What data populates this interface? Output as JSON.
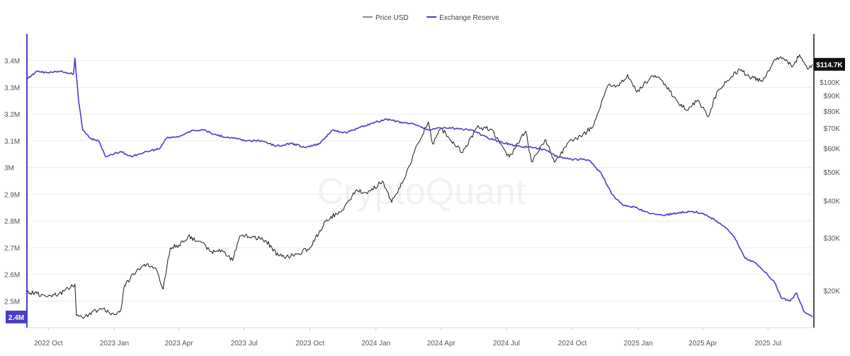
{
  "watermark": "CryptoQuant",
  "colors": {
    "price": "#1a1a1a",
    "reserve": "#4a3dc8",
    "grid": "#ececec",
    "badge_dark": "#111111"
  },
  "chart_data": {
    "type": "line",
    "title": "",
    "grid": true,
    "legend": {
      "position": "top-center",
      "entries": [
        "Price USD",
        "Exchange Reserve"
      ]
    },
    "x_ticks": [
      "2022 Oct",
      "2023 Jan",
      "2023 Apr",
      "2023 Jul",
      "2023 Oct",
      "2024 Jan",
      "2024 Apr",
      "2024 Jul",
      "2024 Oct",
      "2025 Jan",
      "2025 Apr",
      "2025 Jul"
    ],
    "x_range": [
      "2022-09-01",
      "2025-09-01"
    ],
    "y_left": {
      "label": "",
      "range": [
        2400000,
        3500000
      ],
      "ticks": [
        {
          "v": 3400000,
          "t": "3.4M"
        },
        {
          "v": 3300000,
          "t": "3.3M"
        },
        {
          "v": 3200000,
          "t": "3.2M"
        },
        {
          "v": 3100000,
          "t": "3.1M"
        },
        {
          "v": 3000000,
          "t": "3M"
        },
        {
          "v": 2900000,
          "t": "2.9M"
        },
        {
          "v": 2800000,
          "t": "2.8M"
        },
        {
          "v": 2700000,
          "t": "2.7M"
        },
        {
          "v": 2600000,
          "t": "2.6M"
        },
        {
          "v": 2500000,
          "t": "2.5M"
        }
      ]
    },
    "y_right": {
      "label": "",
      "scale": "log",
      "range": [
        15000,
        145000
      ],
      "ticks": [
        {
          "v": 100000,
          "t": "$100K"
        },
        {
          "v": 90000,
          "t": "$90K"
        },
        {
          "v": 80000,
          "t": "$80K"
        },
        {
          "v": 70000,
          "t": "$70K"
        },
        {
          "v": 60000,
          "t": "$60K"
        },
        {
          "v": 50000,
          "t": "$50K"
        },
        {
          "v": 40000,
          "t": "$40K"
        },
        {
          "v": 30000,
          "t": "$30K"
        },
        {
          "v": 20000,
          "t": "$20K"
        }
      ]
    },
    "current_labels": {
      "reserve": "2.4M",
      "price": "$114.7K"
    },
    "series": [
      {
        "name": "Price USD",
        "axis": "right",
        "points": [
          [
            "2022-09-01",
            19800
          ],
          [
            "2022-09-15",
            19500
          ],
          [
            "2022-10-01",
            19200
          ],
          [
            "2022-10-15",
            19400
          ],
          [
            "2022-11-01",
            20500
          ],
          [
            "2022-11-07",
            21000
          ],
          [
            "2022-11-09",
            16500
          ],
          [
            "2022-11-20",
            16200
          ],
          [
            "2022-12-01",
            17000
          ],
          [
            "2022-12-15",
            17300
          ],
          [
            "2023-01-01",
            16600
          ],
          [
            "2023-01-10",
            17200
          ],
          [
            "2023-01-15",
            20800
          ],
          [
            "2023-02-01",
            23300
          ],
          [
            "2023-02-15",
            24500
          ],
          [
            "2023-03-01",
            23400
          ],
          [
            "2023-03-10",
            20200
          ],
          [
            "2023-03-20",
            27800
          ],
          [
            "2023-04-01",
            28400
          ],
          [
            "2023-04-14",
            30400
          ],
          [
            "2023-04-30",
            29200
          ],
          [
            "2023-05-15",
            27000
          ],
          [
            "2023-06-01",
            27100
          ],
          [
            "2023-06-15",
            25200
          ],
          [
            "2023-06-25",
            30500
          ],
          [
            "2023-07-15",
            30200
          ],
          [
            "2023-08-01",
            29300
          ],
          [
            "2023-08-18",
            26100
          ],
          [
            "2023-09-01",
            25900
          ],
          [
            "2023-09-15",
            26600
          ],
          [
            "2023-10-01",
            27800
          ],
          [
            "2023-10-24",
            34500
          ],
          [
            "2023-11-15",
            37200
          ],
          [
            "2023-12-05",
            43500
          ],
          [
            "2023-12-20",
            42200
          ],
          [
            "2024-01-10",
            46500
          ],
          [
            "2024-01-23",
            39500
          ],
          [
            "2024-02-10",
            47500
          ],
          [
            "2024-02-28",
            62000
          ],
          [
            "2024-03-14",
            73500
          ],
          [
            "2024-03-20",
            62000
          ],
          [
            "2024-04-01",
            70000
          ],
          [
            "2024-04-15",
            63500
          ],
          [
            "2024-05-01",
            58000
          ],
          [
            "2024-05-21",
            70500
          ],
          [
            "2024-06-10",
            69500
          ],
          [
            "2024-06-25",
            61000
          ],
          [
            "2024-07-05",
            56000
          ],
          [
            "2024-07-28",
            68500
          ],
          [
            "2024-08-05",
            54000
          ],
          [
            "2024-08-25",
            64000
          ],
          [
            "2024-09-06",
            53800
          ],
          [
            "2024-09-30",
            64000
          ],
          [
            "2024-10-15",
            66000
          ],
          [
            "2024-10-31",
            72000
          ],
          [
            "2024-11-12",
            88000
          ],
          [
            "2024-11-22",
            98500
          ],
          [
            "2024-12-05",
            97000
          ],
          [
            "2024-12-17",
            106000
          ],
          [
            "2024-12-30",
            92500
          ],
          [
            "2025-01-20",
            105000
          ],
          [
            "2025-02-01",
            102000
          ],
          [
            "2025-02-25",
            86000
          ],
          [
            "2025-03-10",
            80500
          ],
          [
            "2025-03-25",
            87000
          ],
          [
            "2025-04-08",
            76500
          ],
          [
            "2025-04-22",
            93500
          ],
          [
            "2025-05-10",
            103500
          ],
          [
            "2025-05-22",
            110500
          ],
          [
            "2025-06-05",
            104000
          ],
          [
            "2025-06-22",
            101000
          ],
          [
            "2025-07-14",
            121000
          ],
          [
            "2025-07-25",
            118000
          ],
          [
            "2025-08-05",
            113500
          ],
          [
            "2025-08-14",
            123500
          ],
          [
            "2025-08-25",
            110500
          ],
          [
            "2025-09-01",
            114700
          ]
        ]
      },
      {
        "name": "Exchange Reserve",
        "axis": "left",
        "points": [
          [
            "2022-09-01",
            3330000
          ],
          [
            "2022-09-15",
            3360000
          ],
          [
            "2022-10-01",
            3355000
          ],
          [
            "2022-10-20",
            3360000
          ],
          [
            "2022-11-05",
            3350000
          ],
          [
            "2022-11-07",
            3410000
          ],
          [
            "2022-11-12",
            3250000
          ],
          [
            "2022-11-18",
            3140000
          ],
          [
            "2022-11-28",
            3110000
          ],
          [
            "2022-12-10",
            3100000
          ],
          [
            "2022-12-20",
            3040000
          ],
          [
            "2023-01-10",
            3060000
          ],
          [
            "2023-01-25",
            3040000
          ],
          [
            "2023-02-15",
            3060000
          ],
          [
            "2023-03-05",
            3070000
          ],
          [
            "2023-03-15",
            3110000
          ],
          [
            "2023-04-01",
            3115000
          ],
          [
            "2023-04-20",
            3140000
          ],
          [
            "2023-05-05",
            3140000
          ],
          [
            "2023-05-25",
            3120000
          ],
          [
            "2023-06-15",
            3110000
          ],
          [
            "2023-07-05",
            3100000
          ],
          [
            "2023-07-25",
            3100000
          ],
          [
            "2023-08-15",
            3080000
          ],
          [
            "2023-09-05",
            3090000
          ],
          [
            "2023-09-25",
            3075000
          ],
          [
            "2023-10-15",
            3090000
          ],
          [
            "2023-11-01",
            3140000
          ],
          [
            "2023-11-20",
            3130000
          ],
          [
            "2023-12-10",
            3150000
          ],
          [
            "2024-01-01",
            3170000
          ],
          [
            "2024-01-15",
            3180000
          ],
          [
            "2024-02-05",
            3170000
          ],
          [
            "2024-02-25",
            3160000
          ],
          [
            "2024-03-15",
            3140000
          ],
          [
            "2024-04-05",
            3150000
          ],
          [
            "2024-04-25",
            3145000
          ],
          [
            "2024-05-15",
            3140000
          ],
          [
            "2024-06-05",
            3110000
          ],
          [
            "2024-06-25",
            3095000
          ],
          [
            "2024-07-15",
            3080000
          ],
          [
            "2024-08-05",
            3075000
          ],
          [
            "2024-08-25",
            3065000
          ],
          [
            "2024-09-10",
            3040000
          ],
          [
            "2024-09-30",
            3030000
          ],
          [
            "2024-10-15",
            3030000
          ],
          [
            "2024-10-25",
            3025000
          ],
          [
            "2024-11-10",
            2980000
          ],
          [
            "2024-11-25",
            2900000
          ],
          [
            "2024-12-10",
            2860000
          ],
          [
            "2024-12-28",
            2850000
          ],
          [
            "2025-01-15",
            2830000
          ],
          [
            "2025-02-05",
            2820000
          ],
          [
            "2025-02-25",
            2830000
          ],
          [
            "2025-03-15",
            2835000
          ],
          [
            "2025-03-30",
            2830000
          ],
          [
            "2025-04-20",
            2800000
          ],
          [
            "2025-05-05",
            2770000
          ],
          [
            "2025-05-15",
            2740000
          ],
          [
            "2025-05-30",
            2660000
          ],
          [
            "2025-06-15",
            2640000
          ],
          [
            "2025-06-30",
            2600000
          ],
          [
            "2025-07-10",
            2570000
          ],
          [
            "2025-07-20",
            2510000
          ],
          [
            "2025-08-01",
            2500000
          ],
          [
            "2025-08-10",
            2530000
          ],
          [
            "2025-08-20",
            2460000
          ],
          [
            "2025-09-01",
            2440000
          ]
        ]
      }
    ]
  }
}
